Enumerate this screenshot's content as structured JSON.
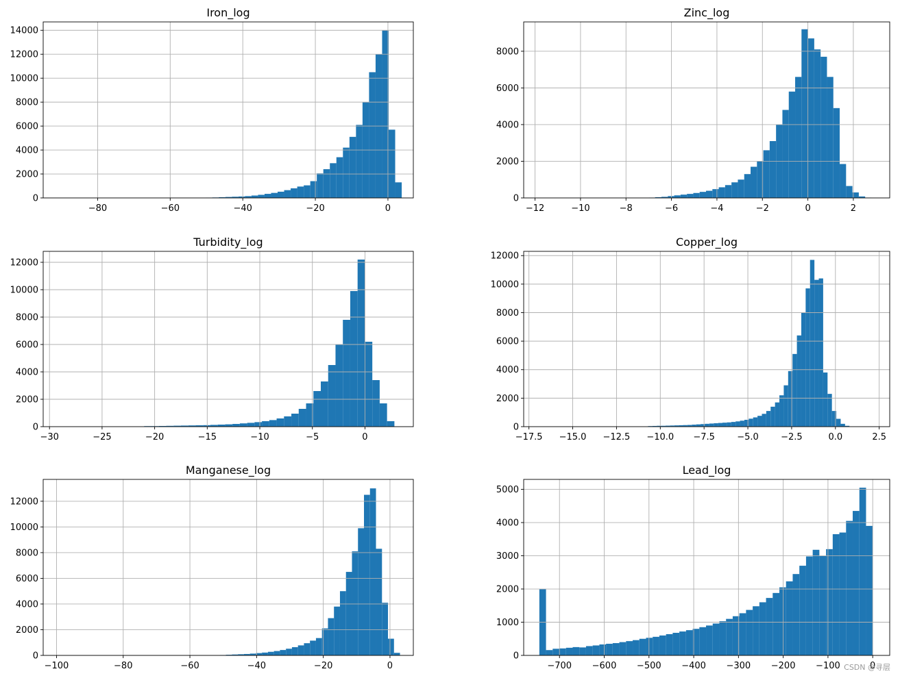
{
  "watermark": "CSDN @寻层",
  "colors": {
    "bar": "#1f77b4",
    "grid": "#b0b0b0",
    "axis": "#000000"
  },
  "chart_data": [
    {
      "type": "bar",
      "title": "Iron_log",
      "grid": true,
      "xlim": [
        -95,
        7
      ],
      "ylim": [
        0,
        14700
      ],
      "xticks": [
        -80,
        -60,
        -40,
        -20,
        0
      ],
      "xtick_labels": [
        "−80",
        "−60",
        "−40",
        "−20",
        "0"
      ],
      "yticks": [
        0,
        2000,
        4000,
        6000,
        8000,
        10000,
        12000,
        14000
      ],
      "bin_edges": [
        -52,
        -50.2,
        -48.4,
        -46.6,
        -44.8,
        -43,
        -41.2,
        -39.4,
        -37.6,
        -35.8,
        -34,
        -32.2,
        -30.4,
        -28.6,
        -26.8,
        -25,
        -23.2,
        -21.4,
        -19.6,
        -17.8,
        -16,
        -14.2,
        -12.4,
        -10.6,
        -8.8,
        -7,
        -5.2,
        -3.4,
        -1.6,
        0.2,
        2.0,
        3.8
      ],
      "values": [
        20,
        30,
        40,
        60,
        80,
        100,
        120,
        150,
        200,
        260,
        340,
        420,
        520,
        650,
        800,
        950,
        1050,
        1400,
        2050,
        2400,
        2900,
        3400,
        4200,
        5100,
        6100,
        8000,
        10500,
        12000,
        14000,
        5700,
        1300
      ]
    },
    {
      "type": "bar",
      "title": "Zinc_log",
      "grid": true,
      "xlim": [
        -12.5,
        3.6
      ],
      "ylim": [
        0,
        9600
      ],
      "xticks": [
        -12,
        -10,
        -8,
        -6,
        -4,
        -2,
        0,
        2
      ],
      "xtick_labels": [
        "−12",
        "−10",
        "−8",
        "−6",
        "−4",
        "−2",
        "0",
        "2"
      ],
      "yticks": [
        0,
        2000,
        4000,
        6000,
        8000
      ],
      "bin_edges": [
        -7.0,
        -6.72,
        -6.44,
        -6.16,
        -5.88,
        -5.6,
        -5.32,
        -5.04,
        -4.76,
        -4.48,
        -4.2,
        -3.92,
        -3.64,
        -3.36,
        -3.08,
        -2.8,
        -2.52,
        -2.24,
        -1.96,
        -1.68,
        -1.4,
        -1.12,
        -0.84,
        -0.56,
        -0.28,
        0.0,
        0.28,
        0.56,
        0.84,
        1.12,
        1.4,
        1.68,
        1.96,
        2.24,
        2.52,
        2.8
      ],
      "values": [
        20,
        40,
        60,
        100,
        140,
        180,
        220,
        270,
        330,
        390,
        480,
        580,
        700,
        850,
        1000,
        1300,
        1700,
        2000,
        2600,
        3100,
        4000,
        4800,
        5800,
        6600,
        9200,
        8700,
        8100,
        7700,
        6600,
        4900,
        1850,
        650,
        300,
        80,
        20
      ]
    },
    {
      "type": "bar",
      "title": "Turbidity_log",
      "grid": true,
      "xlim": [
        -30.6,
        4.6
      ],
      "ylim": [
        0,
        12800
      ],
      "xticks": [
        -30,
        -25,
        -20,
        -15,
        -10,
        -5,
        0
      ],
      "xtick_labels": [
        "−30",
        "−25",
        "−20",
        "−15",
        "−10",
        "−5",
        "0"
      ],
      "yticks": [
        0,
        2000,
        4000,
        6000,
        8000,
        10000,
        12000
      ],
      "bin_edges": [
        -21.0,
        -20.3,
        -19.6,
        -18.9,
        -18.2,
        -17.5,
        -16.8,
        -16.1,
        -15.4,
        -14.7,
        -14.0,
        -13.3,
        -12.6,
        -11.9,
        -11.2,
        -10.5,
        -9.8,
        -9.1,
        -8.4,
        -7.7,
        -7.0,
        -6.3,
        -5.6,
        -4.9,
        -4.2,
        -3.5,
        -2.8,
        -2.1,
        -1.4,
        -0.7,
        0.0,
        0.7,
        1.4,
        2.1,
        2.8
      ],
      "values": [
        40,
        40,
        50,
        60,
        70,
        80,
        90,
        100,
        110,
        130,
        150,
        170,
        200,
        240,
        280,
        330,
        400,
        480,
        600,
        750,
        950,
        1300,
        1700,
        2600,
        3300,
        4500,
        6000,
        7800,
        9900,
        12200,
        6200,
        3400,
        1700,
        400
      ]
    },
    {
      "type": "bar",
      "title": "Copper_log",
      "grid": true,
      "xlim": [
        -17.8,
        3.1
      ],
      "ylim": [
        0,
        12300
      ],
      "xticks": [
        -17.5,
        -15,
        -12.5,
        -10,
        -7.5,
        -5,
        -2.5,
        0,
        2.5
      ],
      "xtick_labels": [
        "−17.5",
        "−15.0",
        "−12.5",
        "−10.0",
        "−7.5",
        "−5.0",
        "−2.5",
        "0.0",
        "2.5"
      ],
      "yticks": [
        0,
        2000,
        4000,
        6000,
        8000,
        10000,
        12000
      ],
      "bin_edges": [
        -10.7,
        -10.45,
        -10.2,
        -9.95,
        -9.7,
        -9.45,
        -9.2,
        -8.95,
        -8.7,
        -8.45,
        -8.2,
        -7.95,
        -7.7,
        -7.45,
        -7.2,
        -6.95,
        -6.7,
        -6.45,
        -6.2,
        -5.95,
        -5.7,
        -5.45,
        -5.2,
        -4.95,
        -4.7,
        -4.45,
        -4.2,
        -3.95,
        -3.7,
        -3.45,
        -3.2,
        -2.95,
        -2.7,
        -2.45,
        -2.2,
        -1.95,
        -1.7,
        -1.45,
        -1.2,
        -0.95,
        -0.7,
        -0.45,
        -0.2,
        0.05,
        0.3,
        0.55,
        0.8,
        1.05,
        1.3,
        1.55,
        1.8,
        2.05
      ],
      "values": [
        40,
        50,
        60,
        60,
        70,
        80,
        90,
        100,
        110,
        120,
        140,
        160,
        180,
        200,
        220,
        240,
        260,
        280,
        300,
        330,
        370,
        420,
        480,
        560,
        650,
        760,
        900,
        1100,
        1400,
        1700,
        2200,
        2900,
        3900,
        5100,
        6400,
        8000,
        9700,
        11700,
        10300,
        10400,
        3800,
        2300,
        1100,
        550,
        200,
        60,
        20,
        10,
        5,
        5,
        2
      ]
    },
    {
      "type": "bar",
      "title": "Manganese_log",
      "grid": true,
      "xlim": [
        -104,
        7
      ],
      "ylim": [
        0,
        13700
      ],
      "xticks": [
        -100,
        -80,
        -60,
        -40,
        -20,
        0
      ],
      "xtick_labels": [
        "−100",
        "−80",
        "−60",
        "−40",
        "−20",
        "0"
      ],
      "yticks": [
        0,
        2000,
        4000,
        6000,
        8000,
        10000,
        12000
      ],
      "bin_edges": [
        -51.0,
        -49.2,
        -47.4,
        -45.6,
        -43.8,
        -42.0,
        -40.2,
        -38.4,
        -36.6,
        -34.8,
        -33.0,
        -31.2,
        -29.4,
        -27.6,
        -25.8,
        -24.0,
        -22.2,
        -20.4,
        -18.6,
        -16.8,
        -15.0,
        -13.2,
        -11.4,
        -9.6,
        -7.8,
        -6.0,
        -4.2,
        -2.4,
        -0.6,
        1.2,
        3.0
      ],
      "values": [
        30,
        50,
        70,
        90,
        110,
        140,
        180,
        220,
        280,
        340,
        420,
        520,
        640,
        780,
        950,
        1150,
        1350,
        2100,
        2900,
        3800,
        5000,
        6500,
        8100,
        9900,
        12500,
        13000,
        8300,
        4100,
        1300,
        200
      ]
    },
    {
      "type": "bar",
      "title": "Lead_log",
      "grid": true,
      "xlim": [
        -780,
        38
      ],
      "ylim": [
        0,
        5300
      ],
      "xticks": [
        -700,
        -600,
        -500,
        -400,
        -300,
        -200,
        -100,
        0
      ],
      "xtick_labels": [
        "−700",
        "−600",
        "−500",
        "−400",
        "−300",
        "−200",
        "−100",
        "0"
      ],
      "yticks": [
        0,
        1000,
        2000,
        3000,
        4000,
        5000
      ],
      "bin_edges": [
        -745,
        -730.1,
        -715.2,
        -700.3,
        -685.4,
        -670.5,
        -655.6,
        -640.7,
        -625.8,
        -610.9,
        -596.0,
        -581.1,
        -566.2,
        -551.3,
        -536.4,
        -521.5,
        -506.6,
        -491.7,
        -476.8,
        -461.9,
        -447.0,
        -432.1,
        -417.2,
        -402.3,
        -387.4,
        -372.5,
        -357.6,
        -342.7,
        -327.8,
        -312.9,
        -298.0,
        -283.1,
        -268.2,
        -253.3,
        -238.4,
        -223.5,
        -208.6,
        -193.7,
        -178.8,
        -163.9,
        -149.0,
        -134.1,
        -119.2,
        -104.3,
        -89.4,
        -74.5,
        -59.6,
        -44.7,
        -29.8,
        -14.9,
        0
      ],
      "values": [
        2000,
        160,
        200,
        210,
        230,
        250,
        240,
        280,
        300,
        330,
        350,
        370,
        400,
        430,
        460,
        500,
        530,
        560,
        600,
        640,
        680,
        720,
        760,
        800,
        850,
        900,
        960,
        1030,
        1100,
        1180,
        1270,
        1370,
        1480,
        1600,
        1730,
        1880,
        2050,
        2230,
        2450,
        2700,
        2980,
        3180,
        3000,
        3200,
        3650,
        3700,
        4050,
        4350,
        5050,
        3900
      ]
    }
  ]
}
